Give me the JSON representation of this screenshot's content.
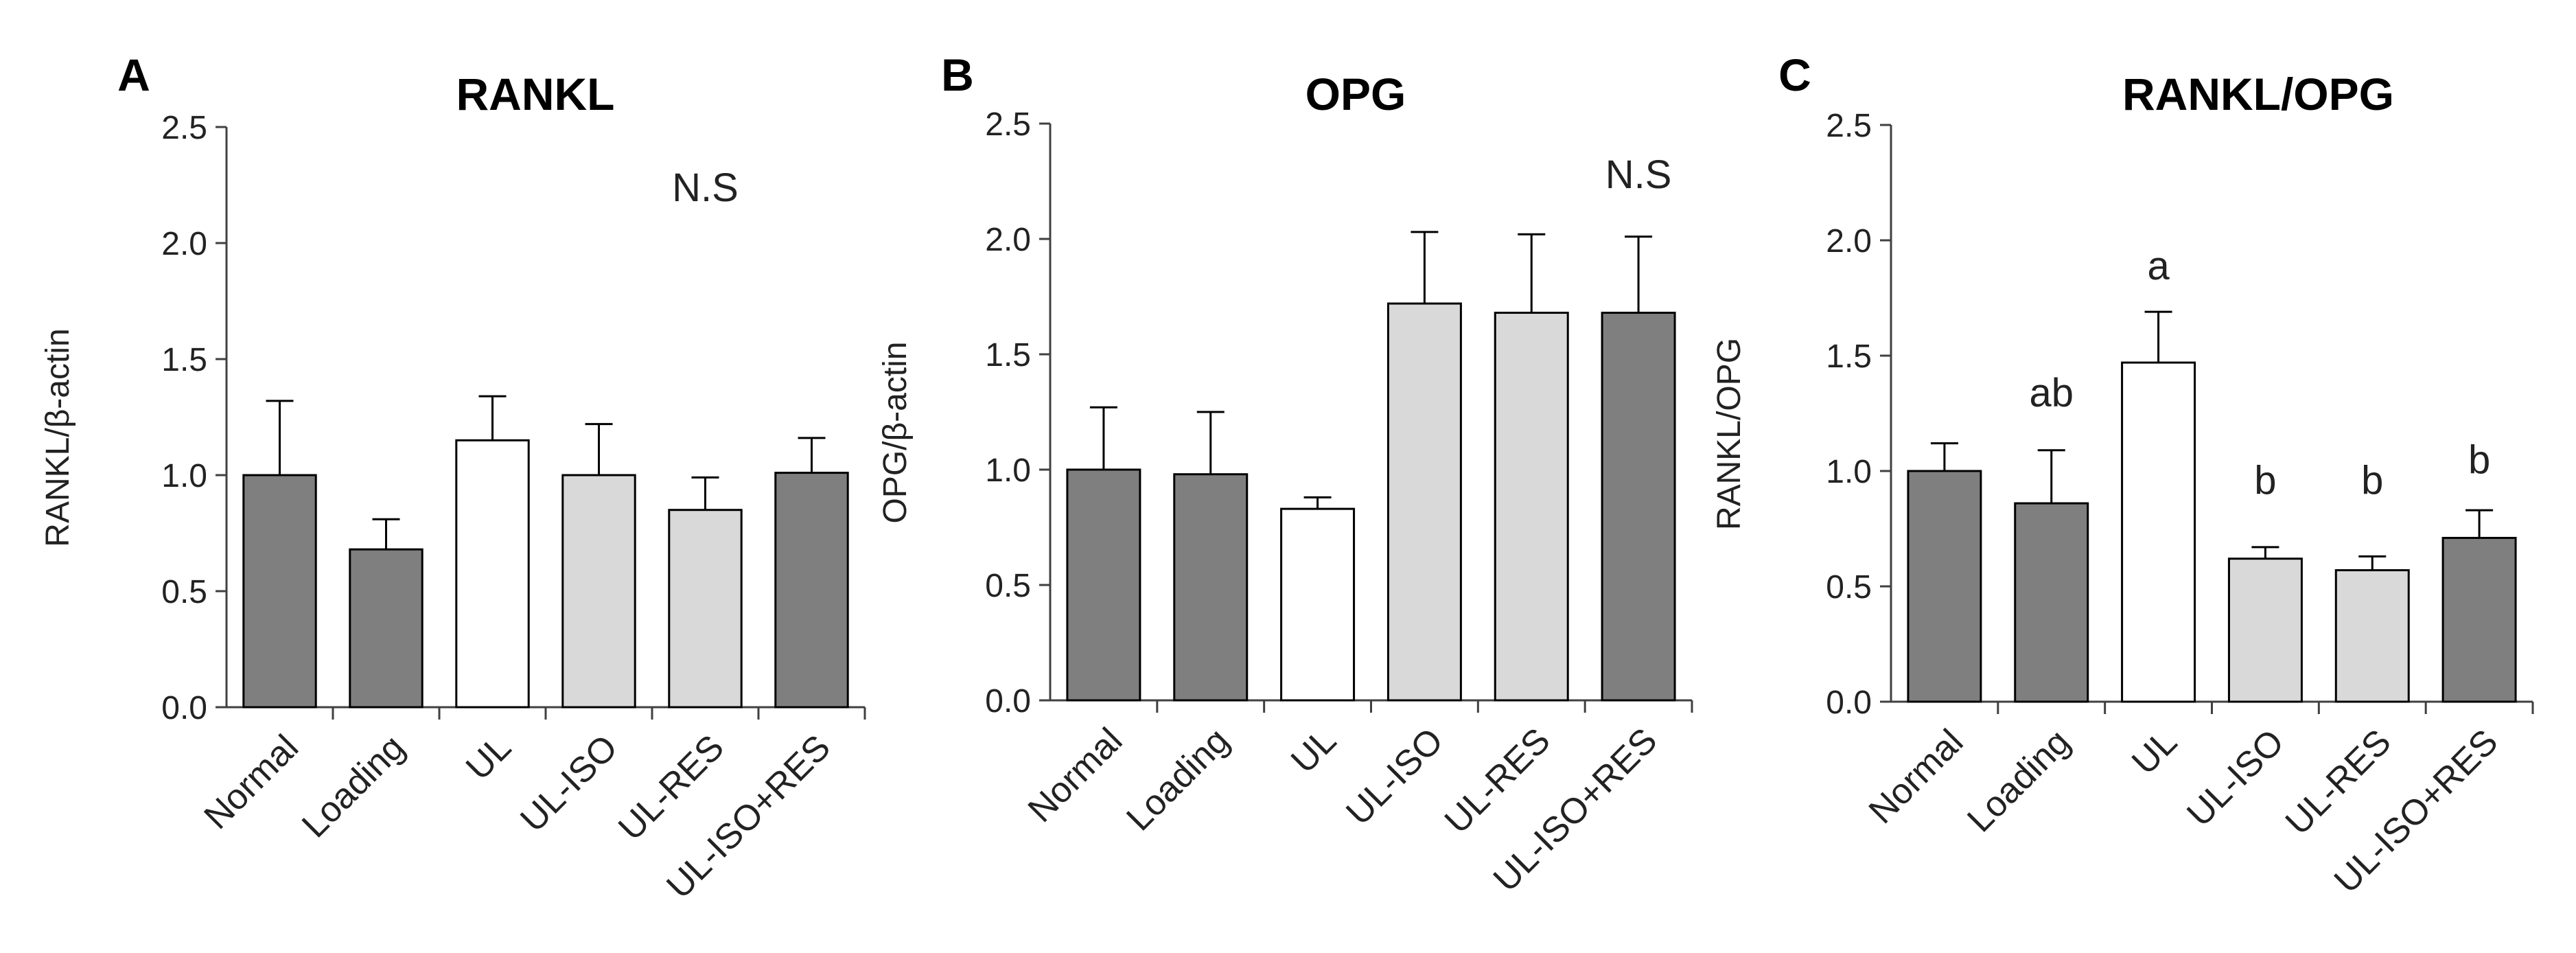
{
  "colors": {
    "dark": "#7f7f7f",
    "white": "#ffffff",
    "light": "#d9d9d9",
    "axis": "#404040"
  },
  "chart_data": [
    {
      "type": "bar",
      "panel": "A",
      "title": "RANKL",
      "ylabel": "RANKL/β-actin",
      "ylim": [
        0,
        2.5
      ],
      "yticks": [
        "0.0",
        "0.5",
        "1.0",
        "1.5",
        "2.0",
        "2.5"
      ],
      "categories": [
        "Normal",
        "Loading",
        "UL",
        "UL-ISO",
        "UL-RES",
        "UL-ISO+RES"
      ],
      "values": [
        1.0,
        0.68,
        1.15,
        1.0,
        0.85,
        1.01
      ],
      "errors": [
        0.32,
        0.13,
        0.19,
        0.22,
        0.14,
        0.15
      ],
      "fills": [
        "dark",
        "dark",
        "white",
        "light",
        "light",
        "dark"
      ],
      "annotations": [
        {
          "text": "N.S",
          "x": 4.0,
          "y": 2.18
        }
      ],
      "grid": false
    },
    {
      "type": "bar",
      "panel": "B",
      "title": "OPG",
      "ylabel": "OPG/β-actin",
      "ylim": [
        0,
        2.5
      ],
      "yticks": [
        "0.0",
        "0.5",
        "1.0",
        "1.5",
        "2.0",
        "2.5"
      ],
      "categories": [
        "Normal",
        "Loading",
        "UL",
        "UL-ISO",
        "UL-RES",
        "UL-ISO+RES"
      ],
      "values": [
        1.0,
        0.98,
        0.83,
        1.72,
        1.68,
        1.68
      ],
      "errors": [
        0.27,
        0.27,
        0.05,
        0.31,
        0.34,
        0.33
      ],
      "fills": [
        "dark",
        "dark",
        "white",
        "light",
        "light",
        "dark"
      ],
      "annotations": [
        {
          "text": "N.S",
          "x": 5.0,
          "y": 2.22
        }
      ],
      "grid": false
    },
    {
      "type": "bar",
      "panel": "C",
      "title": "RANKL/OPG",
      "ylabel": "RANKL/OPG",
      "ylim": [
        0,
        2.5
      ],
      "yticks": [
        "0.0",
        "0.5",
        "1.0",
        "1.5",
        "2.0",
        "2.5"
      ],
      "categories": [
        "Normal",
        "Loading",
        "UL",
        "UL-ISO",
        "UL-RES",
        "UL-ISO+RES"
      ],
      "values": [
        1.0,
        0.86,
        1.47,
        0.62,
        0.57,
        0.71
      ],
      "errors": [
        0.12,
        0.23,
        0.22,
        0.05,
        0.06,
        0.12
      ],
      "fills": [
        "dark",
        "dark",
        "white",
        "light",
        "light",
        "dark"
      ],
      "annotations": [
        {
          "text": "ab",
          "x": 1.0,
          "y": 1.28
        },
        {
          "text": "a",
          "x": 2.0,
          "y": 1.83
        },
        {
          "text": "b",
          "x": 3.0,
          "y": 0.9
        },
        {
          "text": "b",
          "x": 4.0,
          "y": 0.9
        },
        {
          "text": "b",
          "x": 5.0,
          "y": 0.99
        }
      ],
      "grid": false
    }
  ]
}
